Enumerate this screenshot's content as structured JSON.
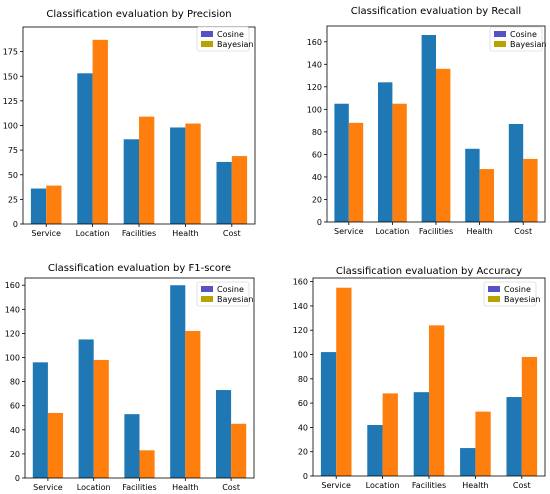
{
  "colors": {
    "cosine": "#1f77b4",
    "bayesian": "#ff7f0e",
    "legend_cosine": "#5553c4",
    "legend_bayesian": "#b8a200",
    "axis": "#000000"
  },
  "chart_data": [
    {
      "type": "bar",
      "title": "Classification evaluation by Precision",
      "categories": [
        "Service",
        "Location",
        "Facilities",
        "Health",
        "Cost"
      ],
      "series": [
        {
          "name": "Cosine",
          "values": [
            36,
            153,
            86,
            98,
            63
          ]
        },
        {
          "name": "Bayesian",
          "values": [
            39,
            187,
            109,
            102,
            69
          ]
        }
      ],
      "ylim": [
        0,
        200
      ],
      "yticks": [
        0,
        25,
        50,
        75,
        100,
        125,
        150,
        175
      ],
      "legend": "top-right",
      "grid": false
    },
    {
      "type": "bar",
      "title": "Classification evaluation by Recall",
      "categories": [
        "Service",
        "Location",
        "Facilities",
        "Health",
        "Cost"
      ],
      "series": [
        {
          "name": "Cosine",
          "values": [
            105,
            124,
            166,
            65,
            87
          ]
        },
        {
          "name": "Bayesian",
          "values": [
            88,
            105,
            136,
            47,
            56
          ]
        }
      ],
      "ylim": [
        0,
        174
      ],
      "yticks": [
        0,
        20,
        40,
        60,
        80,
        100,
        120,
        140,
        160
      ],
      "legend": "top-right",
      "grid": false
    },
    {
      "type": "bar",
      "title": "Classification evaluation by F1-score",
      "categories": [
        "Service",
        "Location",
        "Facilities",
        "Health",
        "Cost"
      ],
      "series": [
        {
          "name": "Cosine",
          "values": [
            96,
            115,
            53,
            160,
            73
          ]
        },
        {
          "name": "Bayesian",
          "values": [
            54,
            98,
            23,
            122,
            45
          ]
        }
      ],
      "ylim": [
        0,
        166
      ],
      "yticks": [
        0,
        20,
        40,
        60,
        80,
        100,
        120,
        140,
        160
      ],
      "legend": "top-right",
      "grid": false
    },
    {
      "type": "bar",
      "title": "Classification evaluation by Accuracy",
      "categories": [
        "Service",
        "Location",
        "Facilities",
        "Health",
        "Cost"
      ],
      "series": [
        {
          "name": "Cosine",
          "values": [
            102,
            42,
            69,
            23,
            65
          ]
        },
        {
          "name": "Bayesian",
          "values": [
            155,
            68,
            124,
            53,
            98
          ]
        }
      ],
      "ylim": [
        0,
        163
      ],
      "yticks": [
        0,
        20,
        40,
        60,
        80,
        100,
        120,
        140,
        160
      ],
      "legend": "top-right",
      "grid": false
    }
  ]
}
